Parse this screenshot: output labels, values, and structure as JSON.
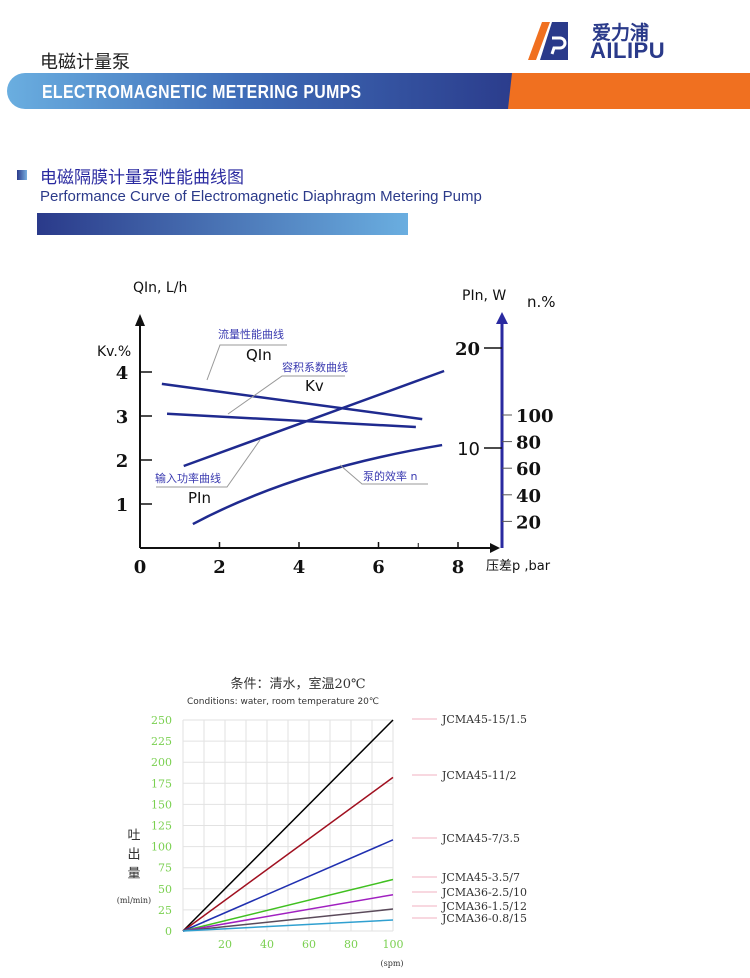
{
  "header": {
    "title_cn": "电磁计量泵",
    "banner_text": "ELECTROMAGNETIC METERING PUMPS",
    "logo_cn": "爱力浦",
    "logo_en": "AILIPU",
    "colors": {
      "banner_blue": "#2a3a8a",
      "banner_orange": "#f07020"
    }
  },
  "section": {
    "title_cn": "电磁隔膜计量泵性能曲线图",
    "title_en": "Performance Curve of Electromagnetic Diaphragm Metering Pump"
  },
  "chart_data": [
    {
      "type": "line",
      "xlabel": "压差p ,bar",
      "x_ticks": [
        "0",
        "2",
        "4",
        "6",
        "8"
      ],
      "xlim": [
        0,
        8.5
      ],
      "ylabel_left_top": "QIn, L/h",
      "ylabel_left": "Kv.%",
      "y_ticks_left": [
        "1",
        "2",
        "3",
        "4"
      ],
      "ylim_left": [
        0,
        5
      ],
      "ylabel_right_power": "PIn, W",
      "y_ticks_right_power": [
        "10",
        "20"
      ],
      "ylim_right_power": [
        0,
        22
      ],
      "ylabel_right_eff": "n.%",
      "y_ticks_right_eff": [
        "20",
        "40",
        "60",
        "80",
        "100"
      ],
      "grid": false,
      "series": [
        {
          "name": "QIn",
          "label_cn": "流量性能曲线",
          "axis": "left",
          "color": "#1f2a8f",
          "x": [
            0.55,
            7.1
          ],
          "y": [
            3.73,
            2.93
          ]
        },
        {
          "name": "Kv",
          "label_cn": "容积系数曲线",
          "axis": "left",
          "color": "#1f2a8f",
          "x": [
            0.68,
            6.94
          ],
          "y": [
            3.05,
            2.75
          ]
        },
        {
          "name": "PIn",
          "label_cn": "输入功率曲线",
          "axis": "right_power",
          "color": "#1f2a8f",
          "x": [
            1.1,
            7.65
          ],
          "y": [
            8.2,
            17.7
          ]
        },
        {
          "name": "n",
          "label_cn": "泵的效率 n",
          "axis": "right_eff",
          "color": "#1f2a8f",
          "x": [
            1.33,
            2.94,
            5.03,
            7.6
          ],
          "y": [
            18,
            43.6,
            64.7,
            77.4
          ]
        }
      ]
    },
    {
      "type": "line",
      "title": "条件：清水，室温20℃",
      "subtitle": "Conditions: water, room temperature 20℃",
      "xlabel": "(spm)",
      "ylabel": "吐出量",
      "ylabel_unit": "(ml/min)",
      "xlim": [
        0,
        100
      ],
      "ylim": [
        0,
        250
      ],
      "x_ticks": [
        "20",
        "40",
        "60",
        "80",
        "100"
      ],
      "y_ticks": [
        "0",
        "25",
        "50",
        "75",
        "100",
        "125",
        "150",
        "175",
        "200",
        "225",
        "250"
      ],
      "grid": true,
      "legend_position": "right",
      "series": [
        {
          "name": "JCMA45-15/1.5",
          "color": "#000000",
          "x": [
            0,
            100
          ],
          "y": [
            0,
            250
          ]
        },
        {
          "name": "JCMA45-11/2",
          "color": "#a01020",
          "x": [
            0,
            100
          ],
          "y": [
            0,
            182
          ]
        },
        {
          "name": "JCMA45-7/3.5",
          "color": "#2030b0",
          "x": [
            0,
            100
          ],
          "y": [
            0,
            108
          ]
        },
        {
          "name": "JCMA45-3.5/7",
          "color": "#40c020",
          "x": [
            0,
            100
          ],
          "y": [
            0,
            61
          ]
        },
        {
          "name": "JCMA36-2.5/10",
          "color": "#a020c0",
          "x": [
            0,
            100
          ],
          "y": [
            0,
            43
          ]
        },
        {
          "name": "JCMA36-1.5/12",
          "color": "#5a4a5a",
          "x": [
            0,
            100
          ],
          "y": [
            0,
            26
          ]
        },
        {
          "name": "JCMA36-0.8/15",
          "color": "#30a0d0",
          "x": [
            0,
            100
          ],
          "y": [
            0,
            13
          ]
        }
      ]
    }
  ]
}
